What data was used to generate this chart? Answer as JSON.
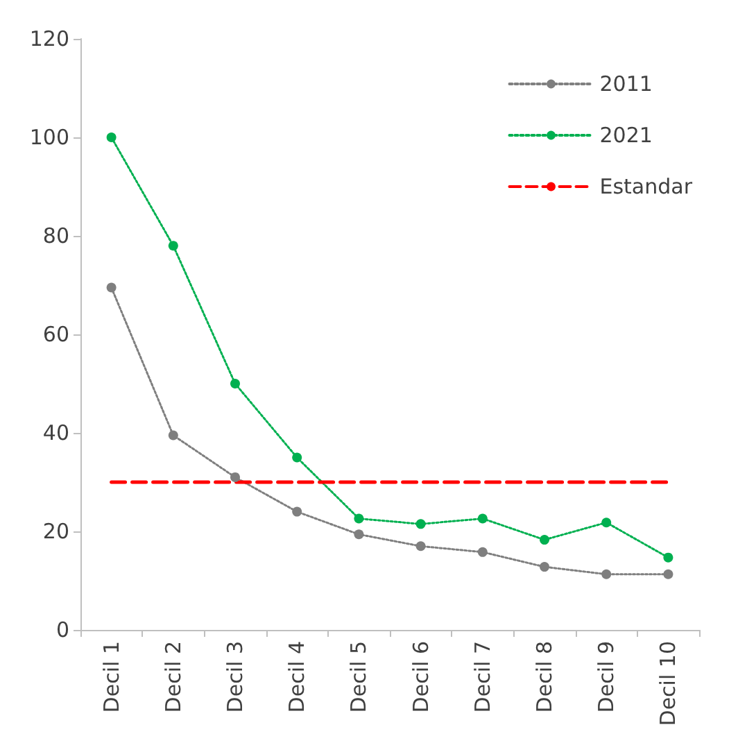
{
  "chart_data": {
    "type": "line",
    "categories": [
      "Decil 1",
      "Decil 2",
      "Decil 3",
      "Decil 4",
      "Decil 5",
      "Decil 6",
      "Decil 7",
      "Decil 8",
      "Decil 9",
      "Decil 10"
    ],
    "series": [
      {
        "name": "2011",
        "color": "#7f7f7f",
        "line_style": "dotted",
        "marker": "circle",
        "values": [
          69.5,
          39.5,
          31,
          24,
          19.4,
          17,
          15.8,
          12.8,
          11.3,
          11.3
        ]
      },
      {
        "name": "2021",
        "color": "#00b050",
        "line_style": "dotted",
        "marker": "circle",
        "values": [
          100,
          78,
          50,
          35,
          22.6,
          21.5,
          22.6,
          18.3,
          21.8,
          14.7
        ]
      },
      {
        "name": "Estandar",
        "color": "#ff0000",
        "line_style": "dashed",
        "marker": "none",
        "values": [
          30,
          30,
          30,
          30,
          30,
          30,
          30,
          30,
          30,
          30
        ]
      }
    ],
    "ylim": [
      0,
      120
    ],
    "yticks": [
      0,
      20,
      40,
      60,
      80,
      100,
      120
    ],
    "grid": false,
    "legend": "top right"
  }
}
